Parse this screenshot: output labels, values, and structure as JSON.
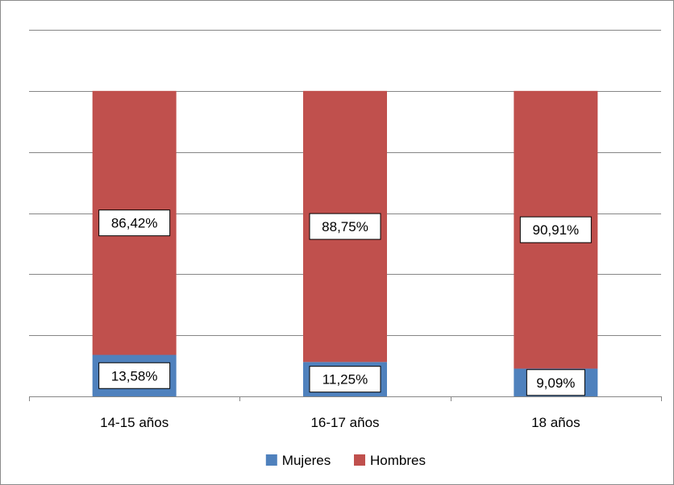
{
  "chart_data": {
    "type": "bar",
    "stacked": true,
    "percent_stacked": true,
    "categories": [
      "14-15 años",
      "16-17 años",
      "18 años"
    ],
    "series": [
      {
        "name": "Mujeres",
        "values": [
          13.58,
          11.25,
          9.09
        ],
        "labels": [
          "13,58%",
          "11,25%",
          "9,09%"
        ],
        "color": "#4f81bd"
      },
      {
        "name": "Hombres",
        "values": [
          86.42,
          88.75,
          90.91
        ],
        "labels": [
          "86,42%",
          "88,75%",
          "90,91%"
        ],
        "color": "#c0504d"
      }
    ],
    "ylim": [
      0,
      120
    ],
    "gridlines": true,
    "legend_position": "bottom",
    "title": "",
    "xlabel": "",
    "ylabel": ""
  }
}
